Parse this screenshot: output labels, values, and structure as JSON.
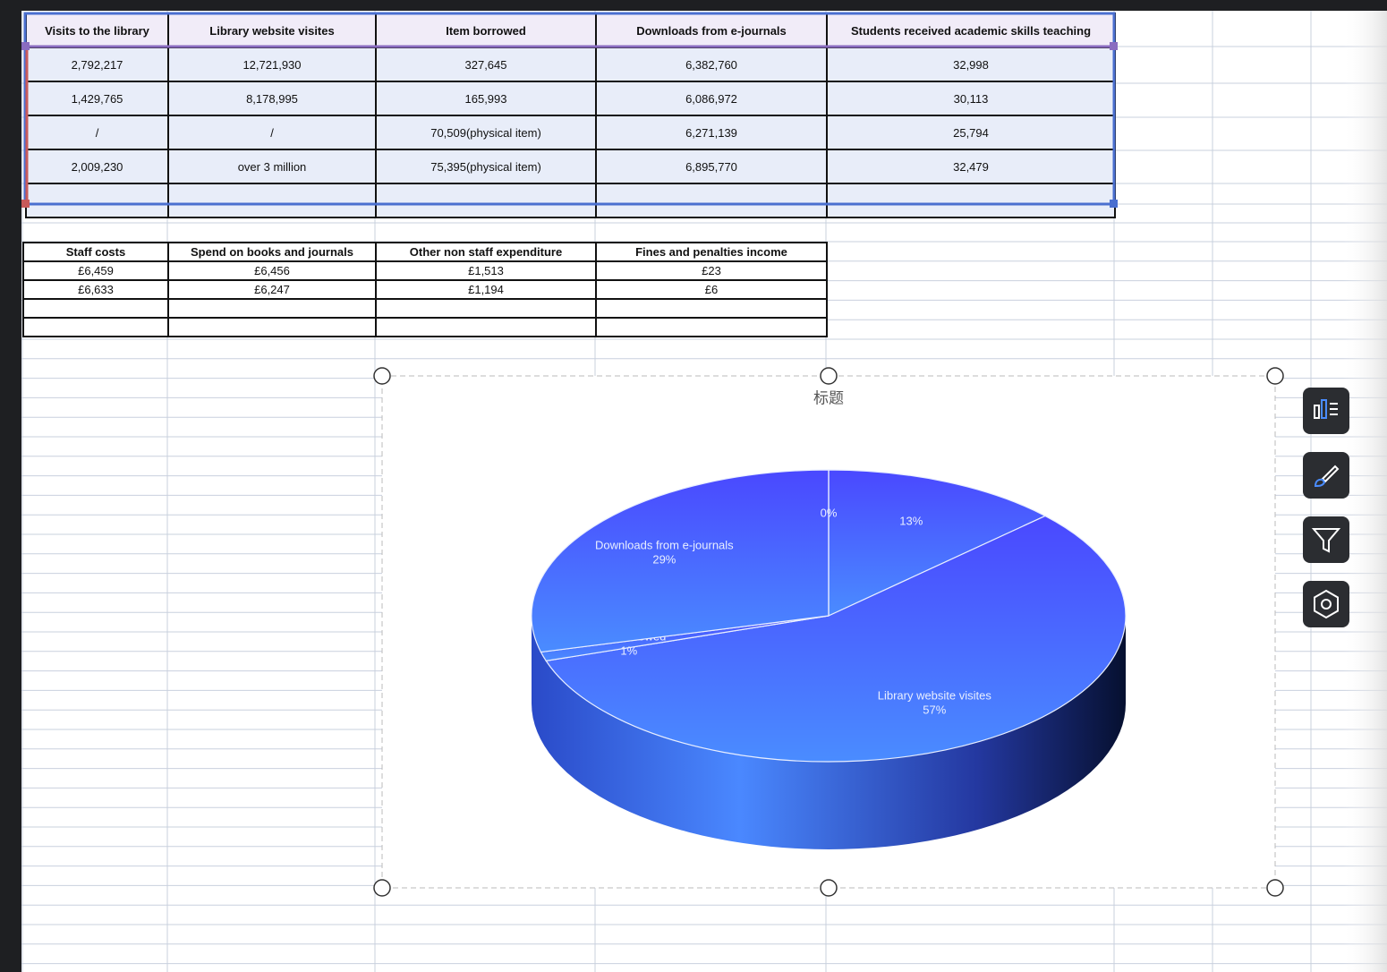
{
  "table1": {
    "headers": [
      "Visits to the library",
      "Library website visites",
      "Item borrowed",
      "Downloads from e-journals",
      "Students received academic skills teaching"
    ],
    "rows": [
      [
        "2,792,217",
        "12,721,930",
        "327,645",
        "6,382,760",
        "32,998"
      ],
      [
        "1,429,765",
        "8,178,995",
        "165,993",
        "6,086,972",
        "30,113"
      ],
      [
        "/",
        "/",
        "70,509(physical item)",
        "6,271,139",
        "25,794"
      ],
      [
        "2,009,230",
        "over 3 million",
        "75,395(physical item)",
        "6,895,770",
        "32,479"
      ]
    ]
  },
  "table2": {
    "headers": [
      "Staff costs",
      "Spend on books and journals",
      "Other non staff expenditure",
      "Fines and penalties income"
    ],
    "rows": [
      [
        "£6,459",
        "£6,456",
        "£1,513",
        "£23"
      ],
      [
        "£6,633",
        "£6,247",
        "£1,194",
        "£6"
      ]
    ]
  },
  "chart_data": {
    "type": "pie",
    "title": "标题",
    "categories": [
      null,
      "Library website visites",
      "Item borrowed",
      "Downloads from e-journals",
      null
    ],
    "values": [
      13,
      57,
      1,
      29,
      0
    ],
    "value_labels": [
      "13%",
      "57%",
      "1%",
      "29%",
      "0%"
    ]
  }
}
